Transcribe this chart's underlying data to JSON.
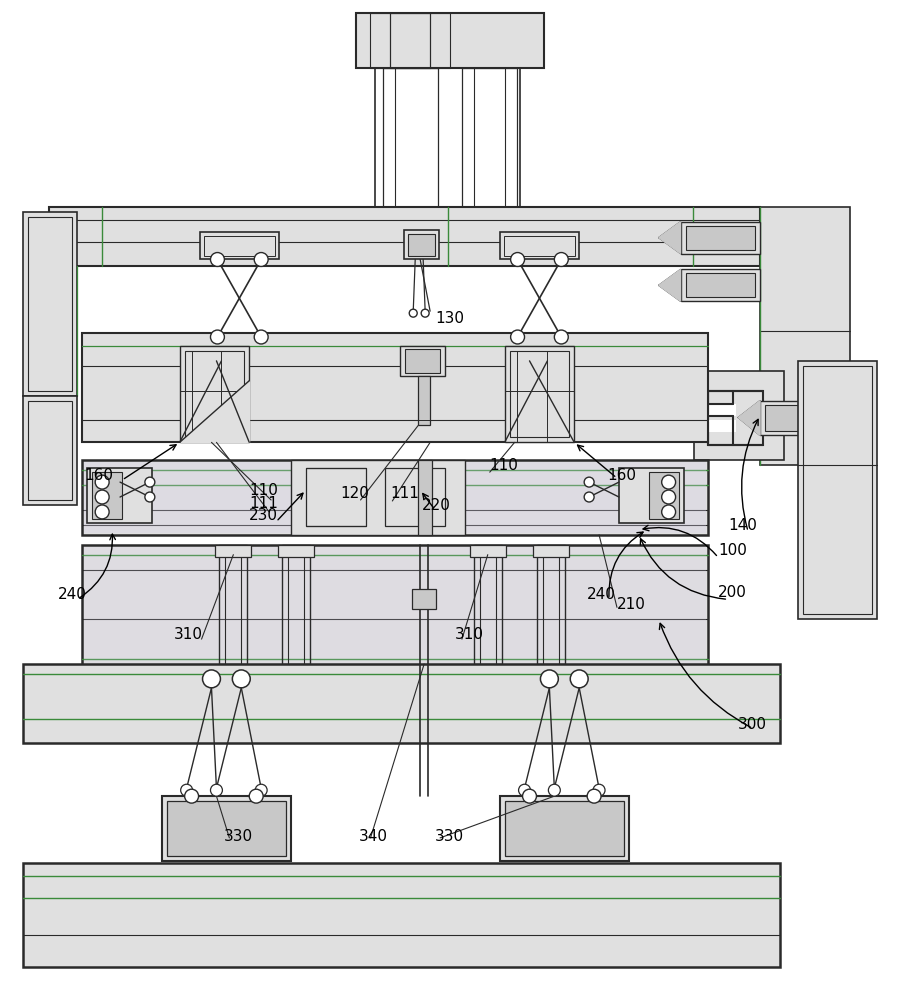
{
  "bg_color": "#ffffff",
  "line_color": "#2a2a2a",
  "green_color": "#3a8a3a",
  "gray_light": "#e0e0e0",
  "gray_mid": "#c8c8c8",
  "gray_dark": "#b0b0b0",
  "purple_tint": "#d8d0e8"
}
